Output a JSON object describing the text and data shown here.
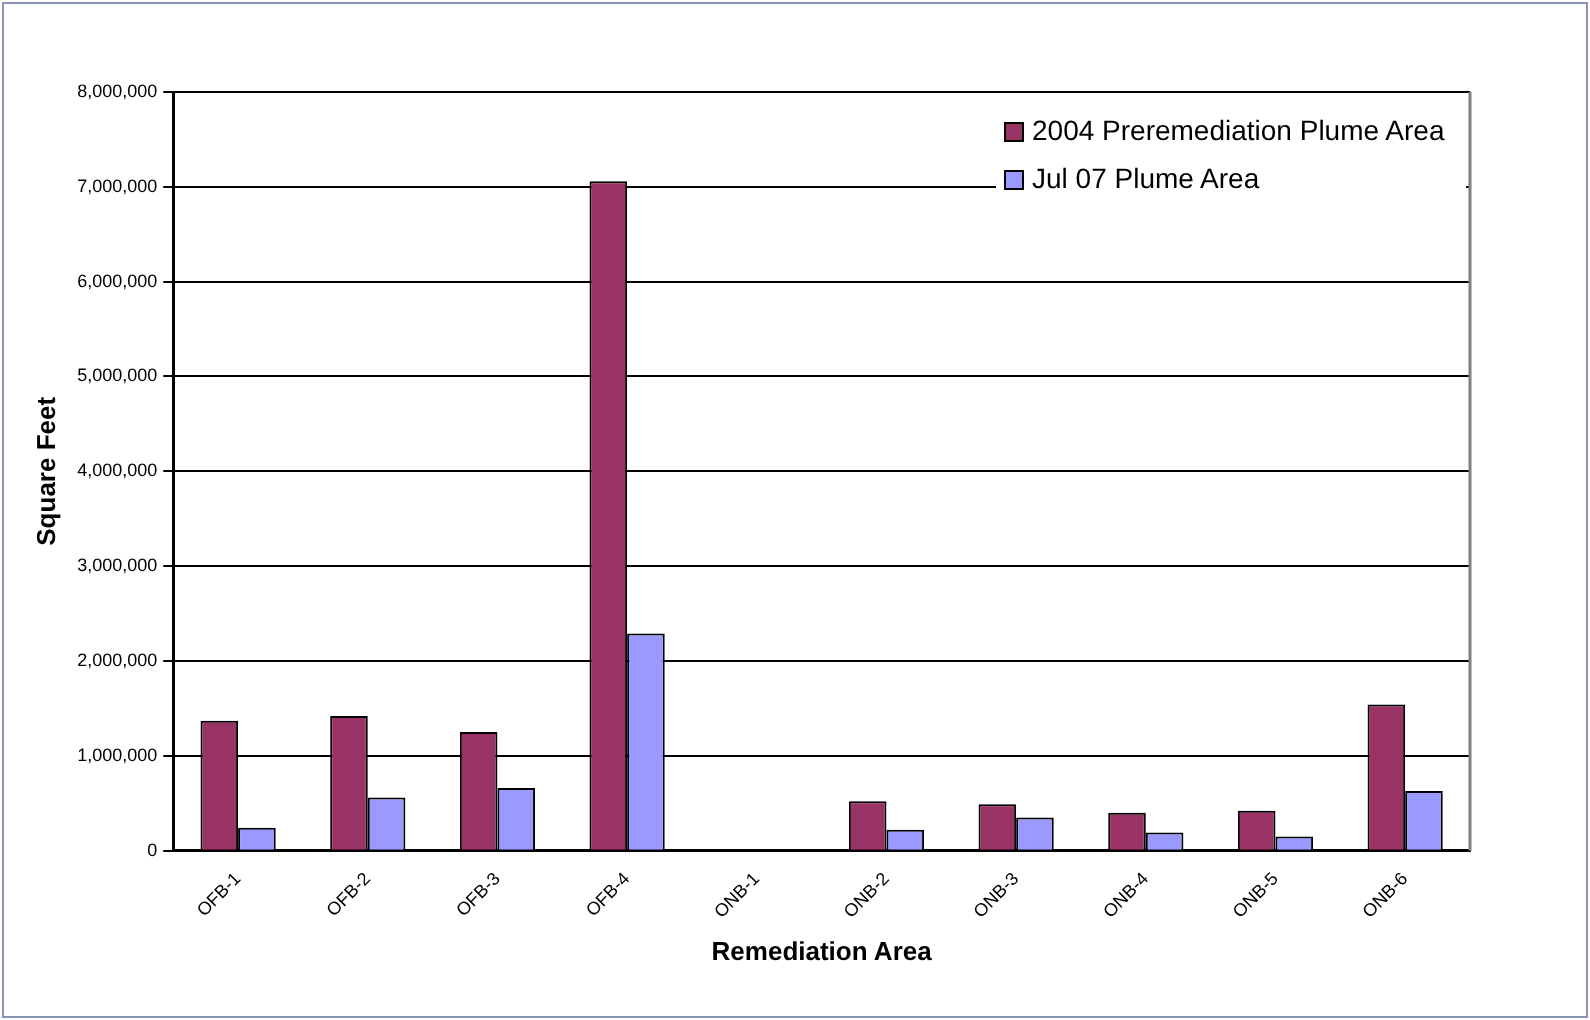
{
  "chart_data": {
    "type": "bar",
    "xlabel": "Remediation Area",
    "ylabel": "Square Feet",
    "categories": [
      "OFB-1",
      "OFB-2",
      "OFB-3",
      "OFB-4",
      "ONB-1",
      "ONB-2",
      "ONB-3",
      "ONB-4",
      "ONB-5",
      "ONB-6"
    ],
    "series": [
      {
        "name": "2004 Preremediation Plume Area",
        "color": "#993366",
        "values": [
          1370000,
          1420000,
          1250000,
          7060000,
          0,
          520000,
          490000,
          400000,
          420000,
          1540000
        ]
      },
      {
        "name": "Jul 07 Plume Area",
        "color": "#9999ff",
        "values": [
          240000,
          560000,
          660000,
          2290000,
          0,
          220000,
          350000,
          190000,
          150000,
          630000
        ]
      }
    ],
    "ylim": [
      0,
      8000000
    ],
    "yticks": [
      0,
      {
        "value": 1000000,
        "label": "1,000,000"
      },
      {
        "value": 2000000,
        "label": "2,000,000"
      },
      {
        "value": 3000000,
        "label": "3,000,000"
      },
      {
        "value": 4000000,
        "label": "4,000,000"
      },
      {
        "value": 5000000,
        "label": "5,000,000"
      },
      {
        "value": 6000000,
        "label": "6,000,000"
      },
      {
        "value": 7000000,
        "label": "7,000,000"
      },
      {
        "value": 8000000,
        "label": "8,000,000"
      }
    ],
    "grid": "y",
    "legend": "top right"
  }
}
